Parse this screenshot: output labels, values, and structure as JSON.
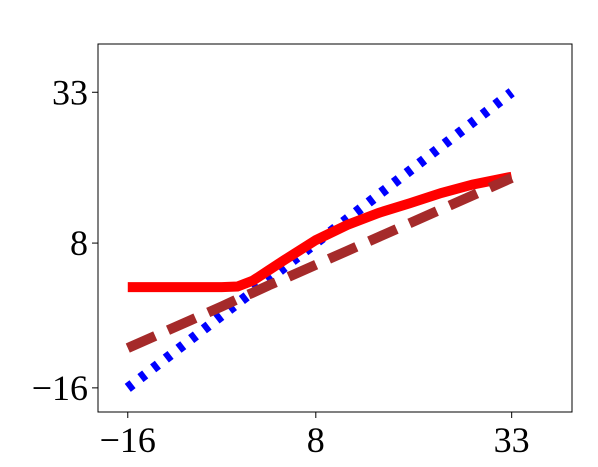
{
  "chart_data": {
    "type": "line",
    "x": [
      -16,
      -8,
      -4,
      -2,
      0,
      2,
      4,
      8,
      12,
      16,
      20,
      24,
      28,
      33
    ],
    "series": [
      {
        "color": "#0000ff",
        "style": "dotted",
        "values": [
          -16,
          -8,
          -4,
          -2,
          0,
          2,
          4,
          8,
          12,
          16,
          20,
          24,
          28,
          33
        ]
      },
      {
        "color": "#ff0000",
        "style": "solid",
        "values": [
          0.7,
          0.7,
          0.7,
          0.8,
          1.8,
          3.5,
          5.2,
          8.5,
          11,
          13,
          14.6,
          16.3,
          17.7,
          19
        ]
      },
      {
        "color": "#a52a2a",
        "style": "dashed",
        "values": [
          -9.4,
          -4.8,
          -2.5,
          -1.3,
          -0.2,
          1.0,
          2.1,
          4.4,
          6.7,
          9.0,
          11.3,
          13.6,
          15.9,
          18.8
        ]
      }
    ],
    "xlim": [
      -19.8,
      40.7
    ],
    "ylim": [
      -20,
      41
    ],
    "xticks": [
      {
        "value": -16,
        "label": "−16"
      },
      8,
      33
    ],
    "yticks": [
      {
        "value": -16,
        "label": "−16"
      },
      8,
      33
    ]
  }
}
